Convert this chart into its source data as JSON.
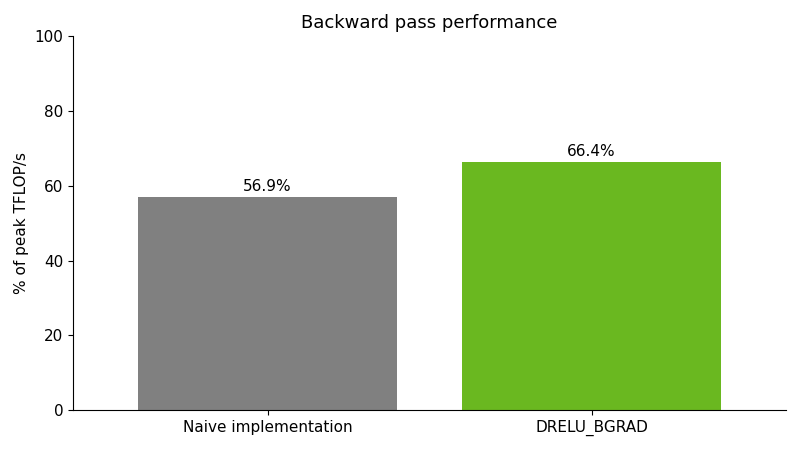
{
  "categories": [
    "Naive implementation",
    "DRELU_BGRAD"
  ],
  "values": [
    56.9,
    66.4
  ],
  "bar_colors": [
    "#808080",
    "#6ab820"
  ],
  "labels": [
    "56.9%",
    "66.4%"
  ],
  "title": "Backward pass performance",
  "ylabel": "% of peak TFLOP/s",
  "ylim": [
    0,
    100
  ],
  "yticks": [
    0,
    20,
    40,
    60,
    80,
    100
  ],
  "background_color": "#ffffff",
  "title_fontsize": 13,
  "label_fontsize": 11,
  "tick_fontsize": 11,
  "bar_width": 0.8,
  "figsize": [
    8.0,
    4.5
  ],
  "dpi": 100
}
